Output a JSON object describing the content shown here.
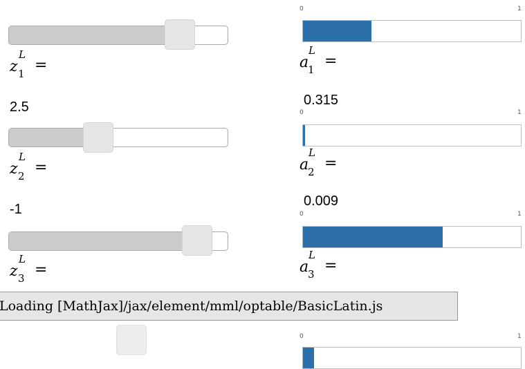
{
  "colors": {
    "slider_fill": "#cccccc",
    "slider_handle": "#e6e6e6",
    "bar_fill": "#2b6ea8"
  },
  "layer": {
    "superscript": "L",
    "z_symbol": "z",
    "a_symbol": "a",
    "equals": "="
  },
  "rows": [
    {
      "z_subscript": "1",
      "z_value": "2.5",
      "a_subscript": "1",
      "a_value": "0.315",
      "slider_fraction": 0.78,
      "bar_value": 0.315,
      "bar_axis": {
        "min": "0",
        "max": "1"
      }
    },
    {
      "z_subscript": "2",
      "z_value": "-1",
      "a_subscript": "2",
      "a_value": "0.009",
      "slider_fraction": 0.41,
      "bar_value": 0.009,
      "bar_axis": {
        "min": "0",
        "max": "1"
      }
    },
    {
      "z_subscript": "3",
      "a_subscript": "3",
      "slider_fraction": 0.86,
      "bar_value": 0.64,
      "bar_axis": {
        "min": "0",
        "max": "1"
      }
    },
    {
      "bar_value": 0.05,
      "bar_axis": {
        "min": "0",
        "max": "1"
      }
    }
  ],
  "status": {
    "loading_message": "Loading [MathJax]/jax/element/mml/optable/BasicLatin.js"
  }
}
